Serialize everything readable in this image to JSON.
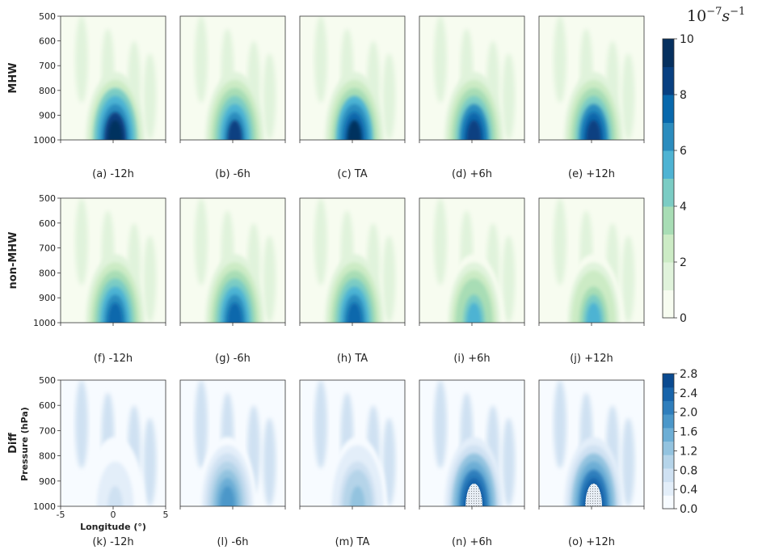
{
  "figure": {
    "unit_label": "10",
    "unit_exp": "−7",
    "unit_s": "s",
    "unit_s_exp": "−1"
  },
  "chart_data": {
    "type": "heatmap",
    "rows": [
      {
        "label": "MHW",
        "captions": [
          "(a) -12h",
          "(b) -6h",
          "(c) TA",
          "(d) +6h",
          "(e) +12h"
        ]
      },
      {
        "label": "non-MHW",
        "captions": [
          "(f) -12h",
          "(g) -6h",
          "(h) TA",
          "(i) +6h",
          "(j) +12h"
        ]
      },
      {
        "label": "Diff",
        "captions": [
          "(k) -12h",
          "(l) -6h",
          "(m) TA",
          "(n) +6h",
          "(o) +12h"
        ]
      }
    ],
    "ylabel": "Pressure (hPa)",
    "xlabel": "Longitude (°)",
    "yticks": [
      "500",
      "600",
      "700",
      "800",
      "900",
      "1000"
    ],
    "xticks": [
      "-5",
      "0",
      "5"
    ],
    "ylim": [
      1000,
      500
    ],
    "xlim": [
      -5,
      5
    ],
    "colorbars": [
      {
        "min": 0,
        "max": 10,
        "ticks": [
          "0",
          "2",
          "4",
          "6",
          "8",
          "10"
        ],
        "colormap": "GnBu"
      },
      {
        "min": 0,
        "max": 2.8,
        "ticks": [
          "0.0",
          "0.4",
          "0.8",
          "1.2",
          "1.6",
          "2.0",
          "2.4",
          "2.8"
        ],
        "colormap": "Blues"
      }
    ],
    "peak_values": {
      "MHW": [
        9.5,
        8.0,
        9.0,
        8.5,
        8.5
      ],
      "non-MHW": [
        7.5,
        7.0,
        7.5,
        5.5,
        5.0
      ],
      "Diff": [
        0.6,
        1.8,
        1.2,
        2.8,
        2.8
      ]
    }
  }
}
